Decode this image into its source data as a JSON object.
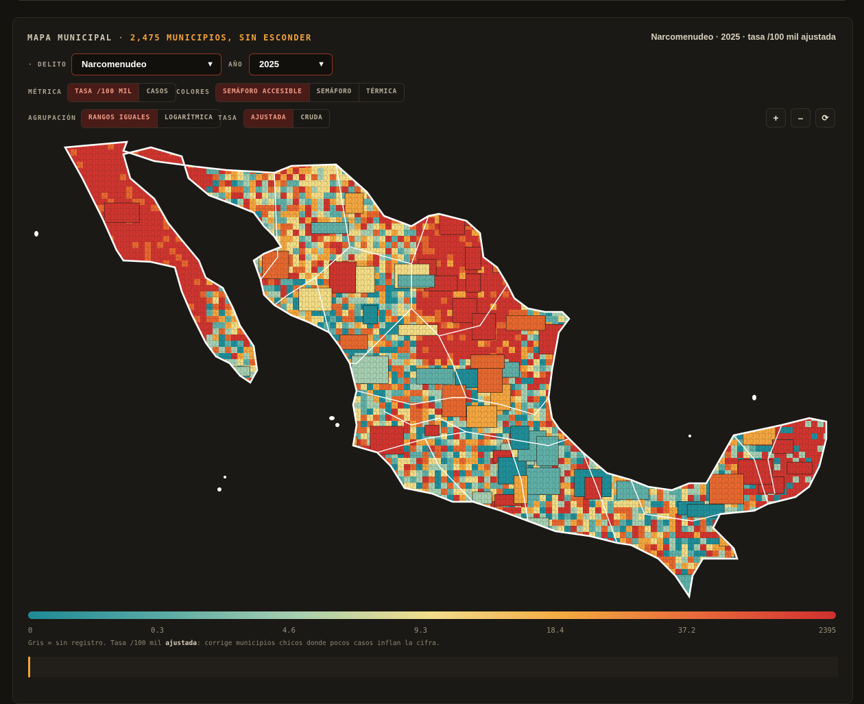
{
  "header": {
    "title_prefix": "MAPA MUNICIPAL",
    "title_sep": "·",
    "title_highlight": "2,475 MUNICIPIOS, SIN ESCONDER",
    "subtitle": "Narcomenudeo · 2025 · tasa /100 mil ajustada"
  },
  "filters": {
    "delito_label": "· DELITO",
    "delito_value": "Narcomenudeo",
    "anio_label": "AÑO",
    "anio_value": "2025"
  },
  "metrica": {
    "label": "MÉTRICA",
    "options": [
      "TASA /100 MIL",
      "CASOS"
    ],
    "selected": 0
  },
  "colores": {
    "label": "COLORES",
    "options": [
      "SEMÁFORO ACCESIBLE",
      "SEMÁFORO",
      "TÉRMICA"
    ],
    "selected": 0
  },
  "agrupacion": {
    "label": "AGRUPACIÓN",
    "options": [
      "RANGOS IGUALES",
      "LOGARÍTMICA"
    ],
    "selected": 0
  },
  "tasa": {
    "label": "TASA",
    "options": [
      "AJUSTADA",
      "CRUDA"
    ],
    "selected": 0
  },
  "zoom": {
    "in": "+",
    "out": "–",
    "reset": "⟳"
  },
  "legend": {
    "ticks": [
      "0",
      "0.3",
      "4.6",
      "9.3",
      "18.4",
      "37.2",
      "2395"
    ],
    "colors": [
      "#1e8a96",
      "#59aaa5",
      "#a8cfb0",
      "#f2dd8a",
      "#f3a840",
      "#e8673a",
      "#cf3030"
    ],
    "note_pre": "Gris = sin registro. Tasa /100 mil ",
    "note_bold": "ajustada",
    "note_post": ": corrige municipios chicos donde pocos casos inflan la cifra."
  },
  "map": {
    "palette": [
      "#1f8e99",
      "#5fb0a8",
      "#a6cfb2",
      "#f2dc86",
      "#f4a63e",
      "#e7682f",
      "#d0352f"
    ]
  }
}
